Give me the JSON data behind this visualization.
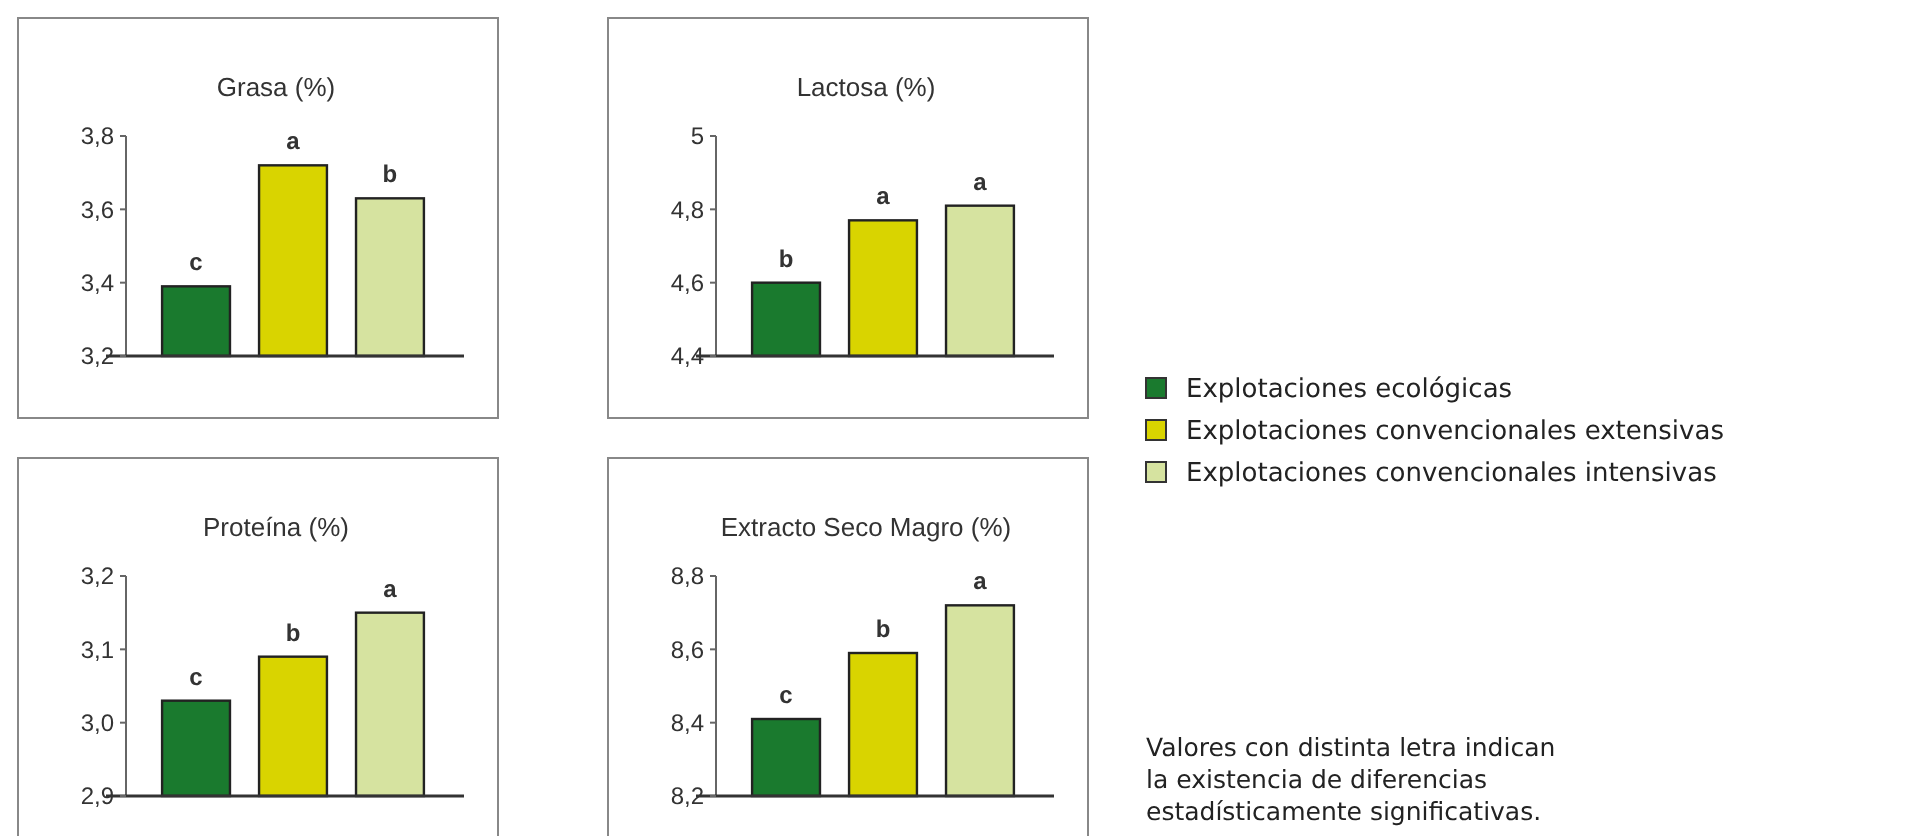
{
  "chart_data": [
    {
      "type": "bar",
      "title": "Grasa (%)",
      "categories": [
        null
      ],
      "ylim": [
        3.2,
        3.8
      ],
      "yticks": [
        {
          "value": 3.2,
          "label": "3,2"
        },
        {
          "value": 3.4,
          "label": "3,4"
        },
        {
          "value": 3.6,
          "label": "3,6"
        },
        {
          "value": 3.8,
          "label": "3,8"
        }
      ],
      "series": [
        {
          "color": "#1a7a2e",
          "values": [
            3.39
          ],
          "value_labels": [
            "c"
          ]
        },
        {
          "color": "#d9d400",
          "values": [
            3.72
          ],
          "value_labels": [
            "a"
          ]
        },
        {
          "color": "#d6e3a0",
          "values": [
            3.63
          ],
          "value_labels": [
            "b"
          ]
        }
      ]
    },
    {
      "type": "bar",
      "title": "Lactosa (%)",
      "categories": [
        null
      ],
      "ylim": [
        4.4,
        5
      ],
      "yticks": [
        {
          "value": 4.4,
          "label": "4,4"
        },
        {
          "value": 4.6,
          "label": "4,6"
        },
        {
          "value": 4.8,
          "label": "4,8"
        },
        5
      ],
      "legend": "right",
      "series": [
        {
          "name": "Explotaciones ecológicas",
          "color": "#1a7a2e",
          "values": [
            4.6
          ],
          "value_labels": [
            "b"
          ]
        },
        {
          "name": "Explotaciones convencionales extensivas",
          "color": "#d9d400",
          "values": [
            4.77
          ],
          "value_labels": [
            "a"
          ]
        },
        {
          "name": "Explotaciones convencionales intensivas",
          "color": "#d6e3a0",
          "values": [
            4.81
          ],
          "value_labels": [
            "a"
          ]
        }
      ]
    },
    {
      "type": "bar",
      "title": "Proteína (%)",
      "categories": [
        null
      ],
      "ylim": [
        2.9,
        3.2
      ],
      "yticks": [
        {
          "value": 2.9,
          "label": "2,9"
        },
        {
          "value": 3.0,
          "label": "3,0"
        },
        {
          "value": 3.1,
          "label": "3,1"
        },
        {
          "value": 3.2,
          "label": "3,2"
        }
      ],
      "series": [
        {
          "color": "#1a7a2e",
          "values": [
            3.03
          ],
          "value_labels": [
            "c"
          ]
        },
        {
          "color": "#d9d400",
          "values": [
            3.09
          ],
          "value_labels": [
            "b"
          ]
        },
        {
          "color": "#d6e3a0",
          "values": [
            3.15
          ],
          "value_labels": [
            "a"
          ]
        }
      ]
    },
    {
      "type": "bar",
      "title": "Extracto Seco Magro (%)",
      "categories": [
        null
      ],
      "ylim": [
        8.2,
        8.8
      ],
      "yticks": [
        {
          "value": 8.2,
          "label": "8,2"
        },
        {
          "value": 8.4,
          "label": "8,4"
        },
        {
          "value": 8.6,
          "label": "8,6"
        },
        {
          "value": 8.8,
          "label": "8,8"
        }
      ],
      "annotations": [
        "Valores con distinta letra indican la existencia de diferencias estadísticamente significativas."
      ],
      "series": [
        {
          "color": "#1a7a2e",
          "values": [
            8.41
          ],
          "value_labels": [
            "c"
          ]
        },
        {
          "color": "#d9d400",
          "values": [
            8.59
          ],
          "value_labels": [
            "b"
          ]
        },
        {
          "color": "#d6e3a0",
          "values": [
            8.72
          ],
          "value_labels": [
            "a"
          ]
        }
      ]
    }
  ]
}
